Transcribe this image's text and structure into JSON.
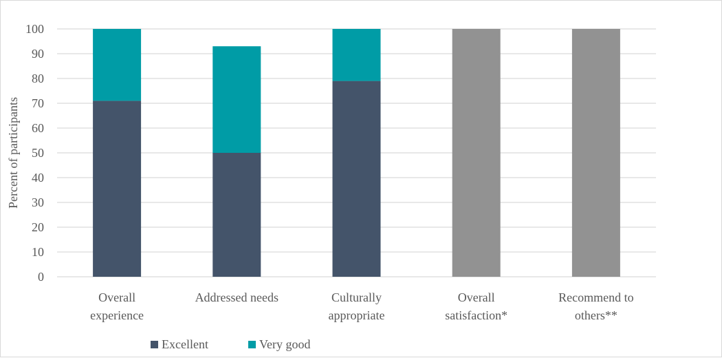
{
  "chart_data": {
    "type": "bar",
    "stacked": true,
    "title": "",
    "xlabel": "",
    "ylabel": "Percent of participants",
    "ylim": [
      0,
      100
    ],
    "yticks": [
      0,
      10,
      20,
      30,
      40,
      50,
      60,
      70,
      80,
      90,
      100
    ],
    "grid": true,
    "legend_position": "bottom-left",
    "categories": [
      [
        "Overall",
        "experience"
      ],
      [
        "Addressed needs"
      ],
      [
        "Culturally",
        "appropriate"
      ],
      [
        "Overall",
        "satisfaction*"
      ],
      [
        "Recommend to",
        "others**"
      ]
    ],
    "series": [
      {
        "name": "Excellent",
        "color": "#44546a",
        "values": [
          71,
          50,
          79,
          null,
          null
        ]
      },
      {
        "name": "Very good",
        "color": "#009ca6",
        "values": [
          29,
          43,
          21,
          null,
          null
        ]
      },
      {
        "name": "",
        "color": "#929292",
        "values": [
          null,
          null,
          null,
          100,
          100
        ]
      }
    ],
    "colors": {
      "grid": "#d9d9d9",
      "axis": "#d9d9d9",
      "text": "#595959"
    }
  }
}
